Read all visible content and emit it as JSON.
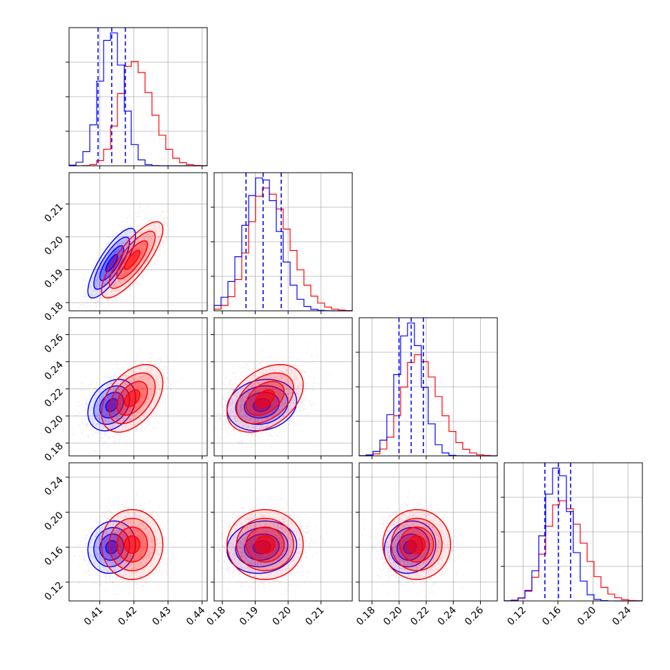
{
  "chart_data": {
    "type": "corner",
    "grid": true,
    "colors": {
      "blue": "#0000ff",
      "red": "#ff0000"
    },
    "series": [
      {
        "color": "blue",
        "quantile_lines": true
      },
      {
        "color": "red"
      }
    ],
    "params": [
      {
        "range": [
          0.401,
          0.4415
        ],
        "ticks": [
          0.41,
          0.42,
          0.43,
          0.44
        ],
        "ticklabels": [
          "0.41",
          "0.42",
          "0.43",
          "0.44"
        ],
        "blue": {
          "mean": 0.4135,
          "sd": 0.0035
        },
        "red": {
          "mean": 0.4195,
          "sd": 0.0045
        },
        "blue_quantiles": [
          0.4095,
          0.4135,
          0.4175
        ]
      },
      {
        "range": [
          0.1775,
          0.2195
        ],
        "ticks": [
          0.18,
          0.19,
          0.2,
          0.21
        ],
        "ticklabels": [
          "0.18",
          "0.19",
          "0.20",
          "0.21"
        ],
        "blue": {
          "mean": 0.192,
          "sd": 0.0053
        },
        "red": {
          "mean": 0.193,
          "sd": 0.0058
        },
        "blue_quantiles": [
          0.1872,
          0.1924,
          0.1979
        ]
      },
      {
        "range": [
          0.1705,
          0.2725
        ],
        "ticks": [
          0.18,
          0.2,
          0.22,
          0.24,
          0.26
        ],
        "ticklabels": [
          "0.18",
          "0.20",
          "0.22",
          "0.24",
          "0.26"
        ],
        "blue": {
          "mean": 0.208,
          "sd": 0.0095
        },
        "red": {
          "mean": 0.213,
          "sd": 0.0125
        },
        "blue_quantiles": [
          0.1999,
          0.2089,
          0.2179
        ]
      },
      {
        "range": [
          0.0985,
          0.2565
        ],
        "ticks": [
          0.12,
          0.16,
          0.2,
          0.24
        ],
        "ticklabels": [
          "0.12",
          "0.16",
          "0.20",
          "0.24"
        ],
        "blue": {
          "mean": 0.16,
          "sd": 0.015
        },
        "red": {
          "mean": 0.163,
          "sd": 0.02
        },
        "blue_quantiles": [
          0.145,
          0.1605,
          0.1745
        ]
      }
    ],
    "pairs": [
      {
        "row": 1,
        "col": 0,
        "blue_corr": 0.8,
        "red_corr": 0.8
      },
      {
        "row": 2,
        "col": 0,
        "blue_corr": 0.3,
        "red_corr": 0.45
      },
      {
        "row": 2,
        "col": 1,
        "blue_corr": 0.15,
        "red_corr": 0.4
      },
      {
        "row": 3,
        "col": 0,
        "blue_corr": 0.1,
        "red_corr": 0.0
      },
      {
        "row": 3,
        "col": 1,
        "blue_corr": 0.1,
        "red_corr": 0.0
      },
      {
        "row": 3,
        "col": 2,
        "blue_corr": 0.1,
        "red_corr": 0.0
      }
    ]
  }
}
